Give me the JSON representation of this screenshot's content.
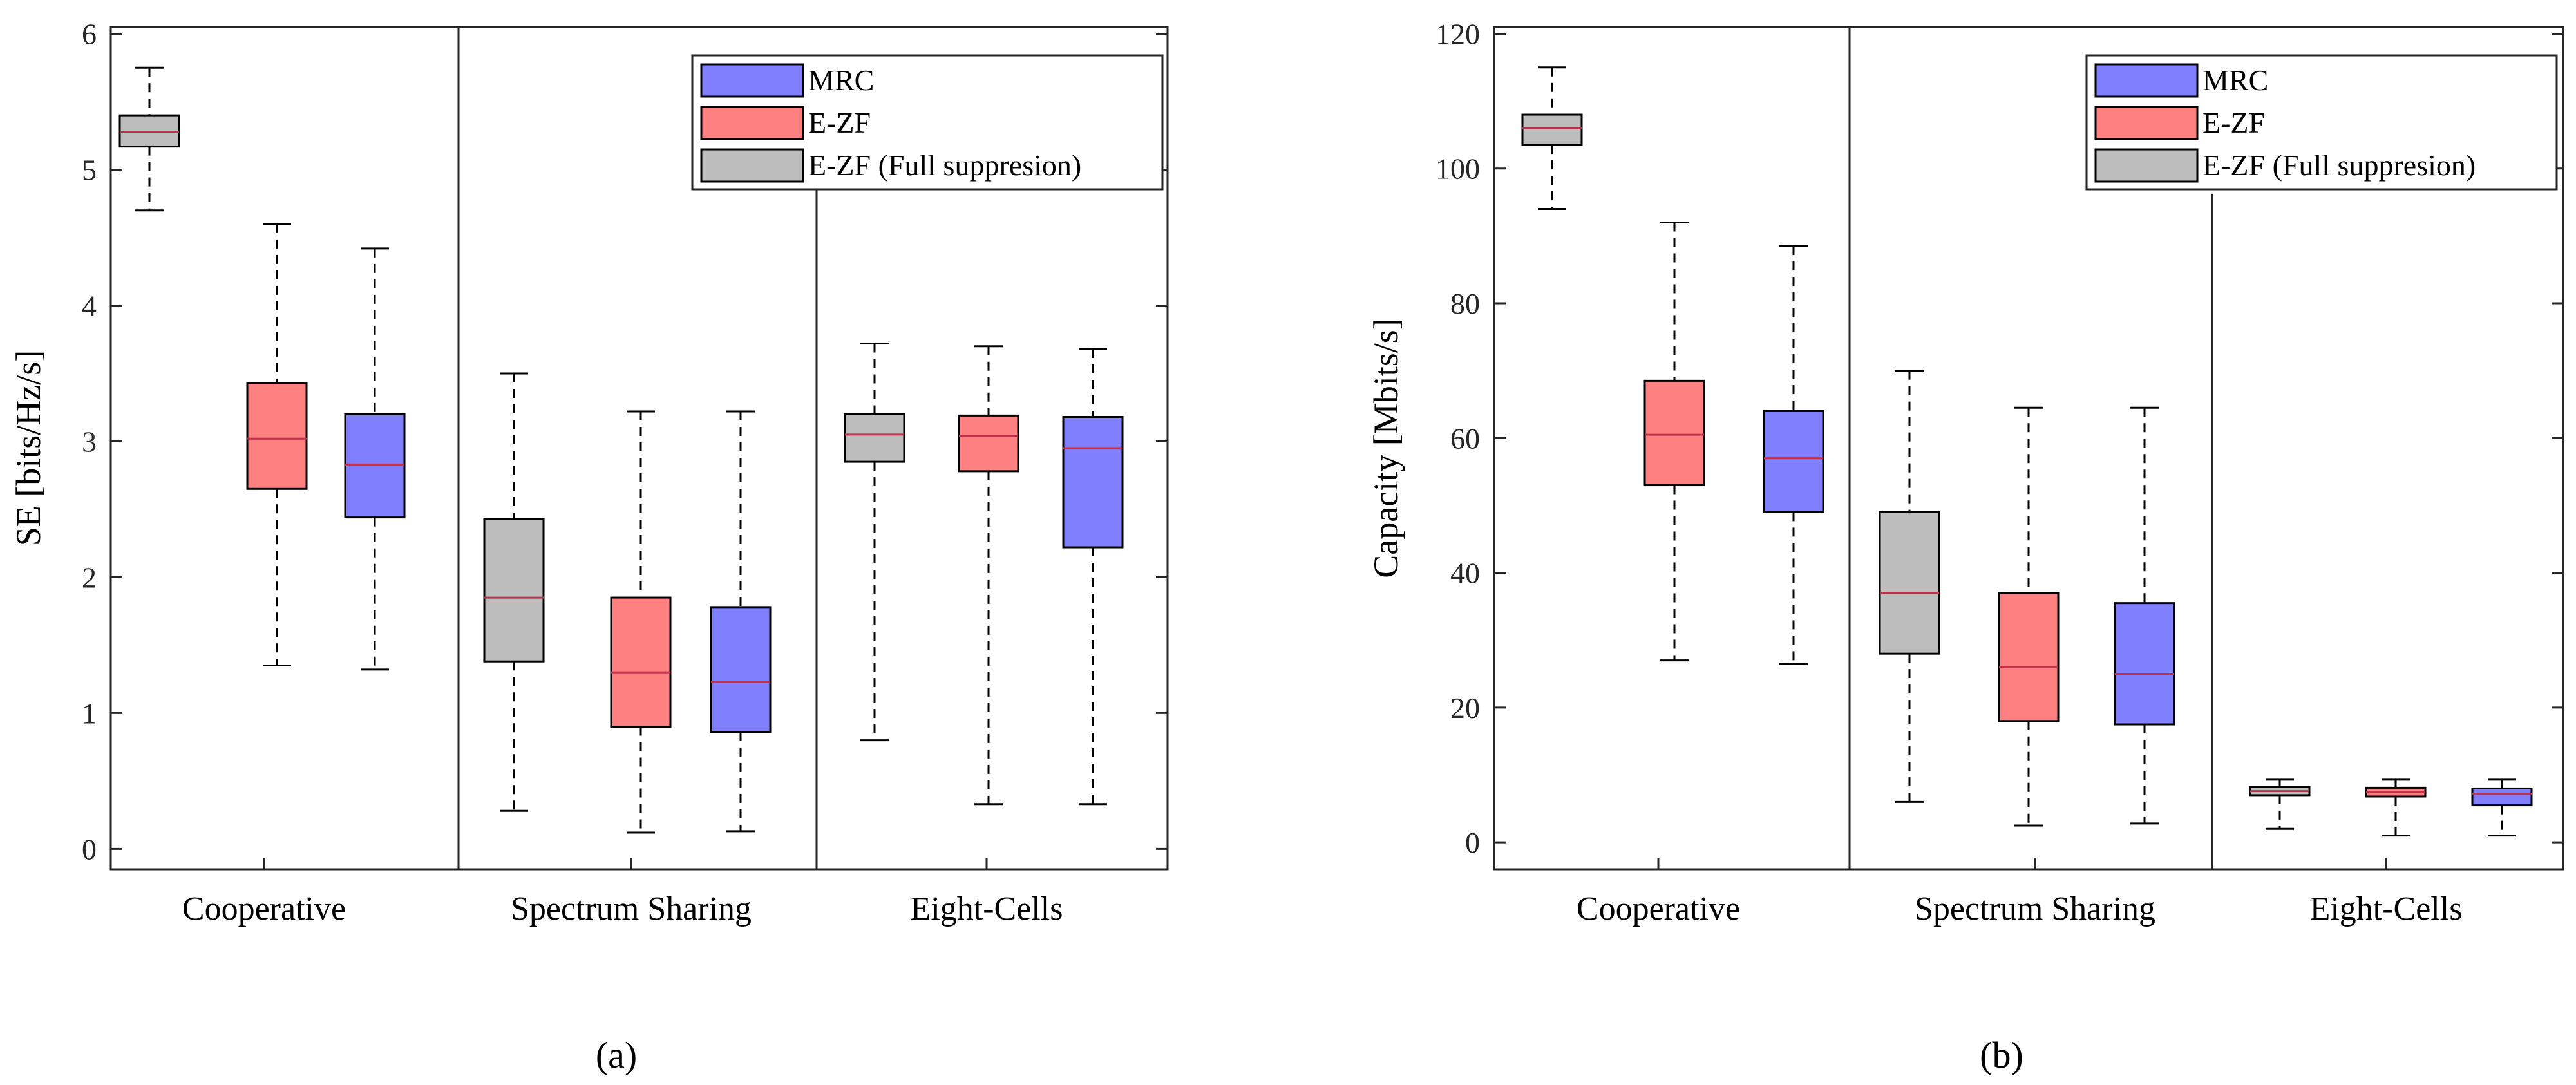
{
  "colors": {
    "E-ZF (Full suppresion)": "#bdbdbd",
    "E-ZF": "#ff8080",
    "MRC": "#8080ff",
    "median": "#c0304a"
  },
  "chart_data": [
    {
      "type": "boxplot",
      "panel_label": "(a)",
      "ylabel": "SE [bits/Hz/s]",
      "ylim": [
        -0.15,
        6.05
      ],
      "yticks": [
        0,
        1,
        2,
        3,
        4,
        5,
        6
      ],
      "categories": [
        "Cooperative",
        "Spectrum Sharing",
        "Eight-Cells"
      ],
      "legend": {
        "placement": "top-right",
        "entries": [
          "MRC",
          "E-ZF",
          "E-ZF (Full suppresion)"
        ]
      },
      "boxes": [
        {
          "category": "Cooperative",
          "series": "E-ZF (Full suppresion)",
          "min": 4.7,
          "q1": 5.17,
          "median": 5.28,
          "q3": 5.4,
          "max": 5.75
        },
        {
          "category": "Cooperative",
          "series": "E-ZF",
          "min": 1.35,
          "q1": 2.65,
          "median": 3.02,
          "q3": 3.43,
          "max": 4.6
        },
        {
          "category": "Cooperative",
          "series": "MRC",
          "min": 1.32,
          "q1": 2.44,
          "median": 2.83,
          "q3": 3.2,
          "max": 4.42
        },
        {
          "category": "Spectrum Sharing",
          "series": "E-ZF (Full suppresion)",
          "min": 0.28,
          "q1": 1.38,
          "median": 1.85,
          "q3": 2.43,
          "max": 3.5
        },
        {
          "category": "Spectrum Sharing",
          "series": "E-ZF",
          "min": 0.12,
          "q1": 0.9,
          "median": 1.3,
          "q3": 1.85,
          "max": 3.22
        },
        {
          "category": "Spectrum Sharing",
          "series": "MRC",
          "min": 0.13,
          "q1": 0.86,
          "median": 1.23,
          "q3": 1.78,
          "max": 3.22
        },
        {
          "category": "Eight-Cells",
          "series": "E-ZF (Full suppresion)",
          "min": 0.8,
          "q1": 2.85,
          "median": 3.05,
          "q3": 3.2,
          "max": 3.72
        },
        {
          "category": "Eight-Cells",
          "series": "E-ZF",
          "min": 0.33,
          "q1": 2.78,
          "median": 3.04,
          "q3": 3.19,
          "max": 3.7
        },
        {
          "category": "Eight-Cells",
          "series": "MRC",
          "min": 0.33,
          "q1": 2.22,
          "median": 2.95,
          "q3": 3.18,
          "max": 3.68
        }
      ]
    },
    {
      "type": "boxplot",
      "panel_label": "(b)",
      "ylabel": "Capacity [Mbits/s]",
      "ylim": [
        -4,
        121
      ],
      "yticks": [
        0,
        20,
        40,
        60,
        80,
        100,
        120
      ],
      "categories": [
        "Cooperative",
        "Spectrum Sharing",
        "Eight-Cells"
      ],
      "legend": {
        "placement": "top-right",
        "entries": [
          "MRC",
          "E-ZF",
          "E-ZF (Full suppresion)"
        ]
      },
      "boxes": [
        {
          "category": "Cooperative",
          "series": "E-ZF (Full suppresion)",
          "min": 94,
          "q1": 103.5,
          "median": 106,
          "q3": 108,
          "max": 115
        },
        {
          "category": "Cooperative",
          "series": "E-ZF",
          "min": 27,
          "q1": 53,
          "median": 60.5,
          "q3": 68.5,
          "max": 92
        },
        {
          "category": "Cooperative",
          "series": "MRC",
          "min": 26.5,
          "q1": 49,
          "median": 57,
          "q3": 64,
          "max": 88.5
        },
        {
          "category": "Spectrum Sharing",
          "series": "E-ZF (Full suppresion)",
          "min": 6,
          "q1": 28,
          "median": 37,
          "q3": 49,
          "max": 70
        },
        {
          "category": "Spectrum Sharing",
          "series": "E-ZF",
          "min": 2.5,
          "q1": 18,
          "median": 26,
          "q3": 37,
          "max": 64.5
        },
        {
          "category": "Spectrum Sharing",
          "series": "MRC",
          "min": 2.8,
          "q1": 17.5,
          "median": 25,
          "q3": 35.5,
          "max": 64.5
        },
        {
          "category": "Eight-Cells",
          "series": "E-ZF (Full suppresion)",
          "min": 2,
          "q1": 7,
          "median": 7.6,
          "q3": 8.2,
          "max": 9.3
        },
        {
          "category": "Eight-Cells",
          "series": "E-ZF",
          "min": 1,
          "q1": 6.8,
          "median": 7.5,
          "q3": 8.1,
          "max": 9.3
        },
        {
          "category": "Eight-Cells",
          "series": "MRC",
          "min": 1,
          "q1": 5.5,
          "median": 7.2,
          "q3": 8,
          "max": 9.3
        }
      ]
    }
  ]
}
